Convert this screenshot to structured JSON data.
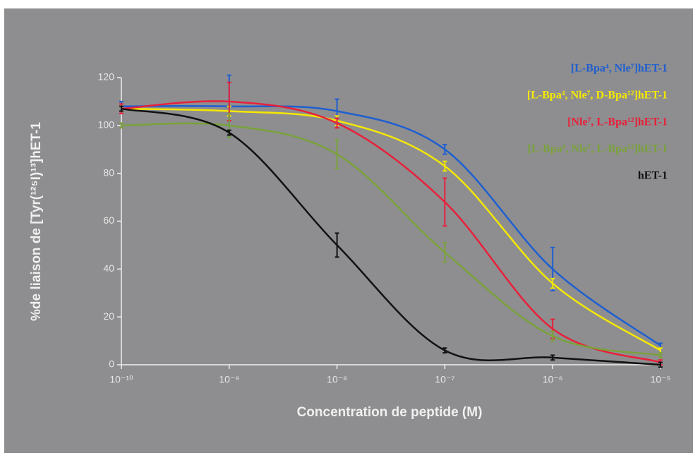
{
  "chart_data": {
    "type": "line",
    "xlabel": "Concentration de peptide (M)",
    "ylabel": "%de liaison de  [Tyr(¹²⁵I)¹³]hET-1",
    "xscale": "log",
    "x": [
      1e-10,
      1e-09,
      1e-08,
      1e-07,
      1e-06,
      1e-05
    ],
    "xlim": [
      1e-10,
      1e-05
    ],
    "xticks": [
      {
        "value": 1e-10,
        "label": "10⁻¹⁰"
      },
      {
        "value": 1e-09,
        "label": "10⁻⁹"
      },
      {
        "value": 1e-08,
        "label": "10⁻⁸"
      },
      {
        "value": 1e-07,
        "label": "10⁻⁷"
      },
      {
        "value": 1e-06,
        "label": "10⁻⁶"
      },
      {
        "value": 1e-05,
        "label": "10⁻⁵"
      }
    ],
    "ylim": [
      0,
      120
    ],
    "yticks": [
      0,
      20,
      40,
      60,
      80,
      100,
      120
    ],
    "legend": "upper right",
    "series": [
      {
        "name": "[L-Bpa⁴, Nle⁷]hET-1",
        "color": "#1f5fd0",
        "values": [
          108,
          108,
          106,
          90,
          40,
          8
        ],
        "errors": [
          2,
          13,
          5,
          2,
          9,
          1
        ]
      },
      {
        "name": "[L-Bpa⁴, Nle⁷, D-Bpa¹²]hET-1",
        "color": "#f5e800",
        "values": [
          107,
          106,
          102,
          83,
          34,
          6
        ],
        "errors": [
          1,
          2,
          2,
          2,
          2,
          1
        ]
      },
      {
        "name": "[Nle⁷, L-Bpa¹²]hET-1",
        "color": "#e8203a",
        "values": [
          107,
          110,
          101,
          68,
          15,
          1
        ],
        "errors": [
          2,
          8,
          2,
          10,
          4,
          1
        ]
      },
      {
        "name": "[L-Bpa⁴, Nle⁷, L-Bpa¹²]hET-1",
        "color": "#7aa23a",
        "values": [
          100,
          100,
          88,
          47,
          12,
          4
        ],
        "errors": [
          1,
          5,
          6,
          4,
          2,
          1
        ]
      },
      {
        "name": "hET-1",
        "color": "#111111",
        "values": [
          107,
          97,
          50,
          6,
          3,
          0
        ],
        "errors": [
          1,
          1,
          5,
          1,
          1,
          1
        ]
      }
    ]
  }
}
